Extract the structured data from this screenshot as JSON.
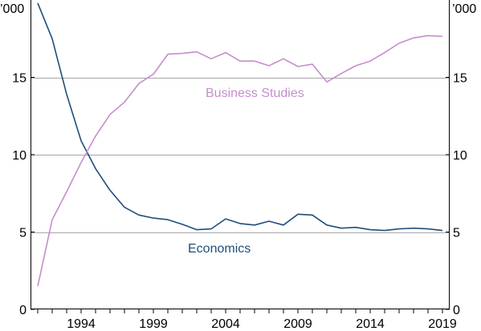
{
  "chart_data": {
    "type": "line",
    "unit_left": "’000",
    "unit_right": "’000",
    "ylim": [
      0,
      20
    ],
    "xlim": [
      1990.5,
      2019.5
    ],
    "y_ticks": [
      {
        "value": 0,
        "label": "0"
      },
      {
        "value": 5,
        "label": "5"
      },
      {
        "value": 10,
        "label": "10"
      },
      {
        "value": 15,
        "label": "15"
      }
    ],
    "gridlines": [
      5,
      10,
      15
    ],
    "x_ticks": [
      {
        "value": 1994,
        "label": "1994"
      },
      {
        "value": 1999,
        "label": "1999"
      },
      {
        "value": 2004,
        "label": "2004"
      },
      {
        "value": 2009,
        "label": "2009"
      },
      {
        "value": 2014,
        "label": "2014"
      },
      {
        "value": 2019,
        "label": "2019"
      }
    ],
    "x": [
      1991,
      1992,
      1993,
      1994,
      1995,
      1996,
      1997,
      1998,
      1999,
      2000,
      2001,
      2002,
      2003,
      2004,
      2005,
      2006,
      2007,
      2008,
      2009,
      2010,
      2011,
      2012,
      2013,
      2014,
      2015,
      2016,
      2017,
      2018,
      2019
    ],
    "series": [
      {
        "name": "Economics",
        "color": "#1f4e79",
        "values": [
          19.8,
          17.5,
          13.9,
          10.9,
          9.1,
          7.7,
          6.6,
          6.1,
          5.9,
          5.8,
          5.5,
          5.15,
          5.2,
          5.85,
          5.55,
          5.45,
          5.7,
          5.45,
          6.15,
          6.1,
          5.45,
          5.25,
          5.3,
          5.15,
          5.1,
          5.2,
          5.25,
          5.2,
          5.1
        ]
      },
      {
        "name": "Business Studies",
        "color": "#c58ecb",
        "values": [
          1.5,
          5.8,
          7.6,
          9.5,
          11.2,
          12.6,
          13.4,
          14.6,
          15.2,
          16.5,
          16.55,
          16.65,
          16.2,
          16.6,
          16.05,
          16.05,
          15.75,
          16.2,
          15.7,
          15.85,
          14.7,
          15.25,
          15.75,
          16.05,
          16.6,
          17.2,
          17.55,
          17.7,
          17.65
        ]
      }
    ]
  }
}
